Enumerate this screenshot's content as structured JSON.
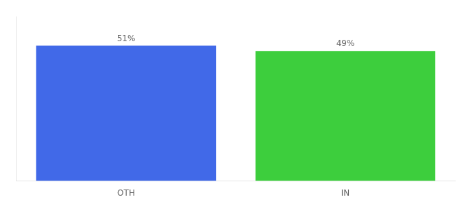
{
  "chart_data": {
    "type": "bar",
    "categories": [
      "OTH",
      "IN"
    ],
    "values": [
      51,
      49
    ],
    "value_labels": [
      "51%",
      "49%"
    ],
    "data_labels": true,
    "colors": [
      "#4169e8",
      "#3dce3d"
    ],
    "ylim": [
      0,
      62
    ],
    "tick_labels": "x",
    "grid": false
  }
}
